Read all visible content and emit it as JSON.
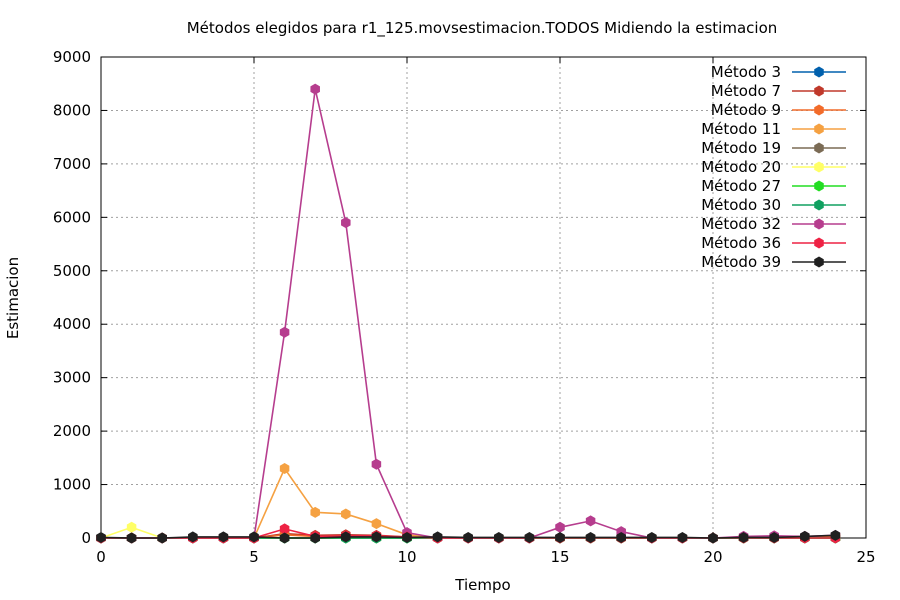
{
  "chart_data": {
    "type": "line",
    "title": "Métodos elegidos para r1_125.movsestimacion.TODOS Midiendo la estimacion",
    "xlabel": "Tiempo",
    "ylabel": "Estimacion",
    "xlim": [
      0,
      25
    ],
    "ylim": [
      0,
      9000
    ],
    "xticks": [
      "0",
      "5",
      "10",
      "15",
      "20",
      "25"
    ],
    "yticks": [
      "0",
      "1000",
      "2000",
      "3000",
      "4000",
      "5000",
      "6000",
      "7000",
      "8000",
      "9000"
    ],
    "grid": true,
    "legend_position": "top-right",
    "x": [
      0,
      1,
      2,
      3,
      4,
      5,
      6,
      7,
      8,
      9,
      10,
      11,
      12,
      13,
      14,
      15,
      16,
      17,
      18,
      19,
      20,
      21,
      22,
      23,
      24
    ],
    "series": [
      {
        "name": "Método 3",
        "color": "#0060ad",
        "values": [
          0,
          0,
          0,
          0,
          0,
          0,
          0,
          0,
          0,
          0,
          0,
          0,
          0,
          0,
          0,
          0,
          0,
          0,
          0,
          0,
          0,
          0,
          0,
          0,
          0
        ]
      },
      {
        "name": "Método 7",
        "color": "#c0392b",
        "values": [
          0,
          0,
          0,
          0,
          0,
          0,
          80,
          50,
          60,
          50,
          20,
          0,
          0,
          0,
          0,
          0,
          0,
          0,
          0,
          0,
          0,
          0,
          10,
          20,
          40
        ]
      },
      {
        "name": "Método 9",
        "color": "#f26b2a",
        "values": [
          0,
          0,
          0,
          0,
          0,
          0,
          60,
          30,
          40,
          30,
          10,
          0,
          0,
          0,
          0,
          0,
          0,
          0,
          0,
          0,
          0,
          0,
          0,
          10,
          20
        ]
      },
      {
        "name": "Método 11",
        "color": "#f5a142",
        "values": [
          0,
          0,
          0,
          0,
          0,
          0,
          1300,
          480,
          450,
          270,
          60,
          0,
          0,
          0,
          0,
          0,
          0,
          0,
          0,
          0,
          0,
          0,
          0,
          0,
          0
        ]
      },
      {
        "name": "Método 19",
        "color": "#7b6b55",
        "values": [
          0,
          0,
          0,
          0,
          0,
          0,
          0,
          0,
          0,
          0,
          0,
          0,
          0,
          0,
          0,
          0,
          0,
          0,
          0,
          0,
          0,
          0,
          0,
          0,
          0
        ]
      },
      {
        "name": "Método 20",
        "color": "#ffff66",
        "values": [
          0,
          200,
          0,
          0,
          0,
          0,
          0,
          0,
          0,
          0,
          0,
          0,
          0,
          0,
          0,
          0,
          0,
          0,
          0,
          0,
          0,
          0,
          0,
          0,
          0
        ]
      },
      {
        "name": "Método 27",
        "color": "#22dd22",
        "values": [
          0,
          0,
          0,
          0,
          0,
          0,
          0,
          0,
          0,
          0,
          0,
          0,
          0,
          0,
          0,
          0,
          0,
          0,
          0,
          0,
          0,
          0,
          0,
          0,
          0
        ]
      },
      {
        "name": "Método 30",
        "color": "#10a060",
        "values": [
          0,
          0,
          0,
          0,
          0,
          0,
          0,
          0,
          0,
          0,
          0,
          0,
          0,
          0,
          0,
          0,
          0,
          0,
          0,
          0,
          0,
          0,
          0,
          0,
          0
        ]
      },
      {
        "name": "Método 32",
        "color": "#b63d8e",
        "values": [
          0,
          0,
          0,
          0,
          0,
          0,
          3850,
          8400,
          5900,
          1380,
          100,
          0,
          0,
          0,
          0,
          200,
          320,
          120,
          0,
          0,
          0,
          30,
          40,
          30,
          50
        ]
      },
      {
        "name": "Método 36",
        "color": "#ee2244",
        "values": [
          0,
          0,
          0,
          0,
          0,
          0,
          170,
          30,
          40,
          40,
          20,
          0,
          0,
          0,
          0,
          0,
          0,
          0,
          0,
          0,
          0,
          0,
          0,
          0,
          0
        ]
      },
      {
        "name": "Método 39",
        "color": "#202020",
        "values": [
          10,
          0,
          0,
          20,
          20,
          20,
          0,
          0,
          20,
          20,
          10,
          20,
          10,
          10,
          10,
          10,
          10,
          10,
          10,
          10,
          0,
          10,
          10,
          30,
          50
        ]
      }
    ]
  }
}
